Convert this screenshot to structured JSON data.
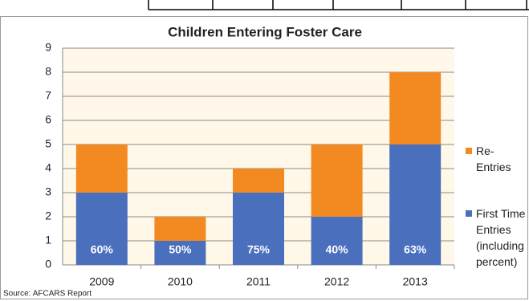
{
  "chart_data": {
    "type": "stacked_bar",
    "title": "Children Entering Foster Care",
    "categories": [
      "2009",
      "2010",
      "2011",
      "2012",
      "2013"
    ],
    "series": [
      {
        "name": "First Time Entries (including percent)",
        "color": "#4a6fbd",
        "values": [
          3,
          1,
          3,
          2,
          5
        ]
      },
      {
        "name": "Re-Entries",
        "color": "#f38a21",
        "values": [
          2,
          1,
          1,
          3,
          3
        ]
      }
    ],
    "bar_annotations": [
      "60%",
      "50%",
      "75%",
      "40%",
      "63%"
    ],
    "ylim": [
      0,
      9
    ],
    "yticks": [
      0,
      1,
      2,
      3,
      4,
      5,
      6,
      7,
      8,
      9
    ],
    "grid": true,
    "source": "Source: AFCARS Report"
  }
}
